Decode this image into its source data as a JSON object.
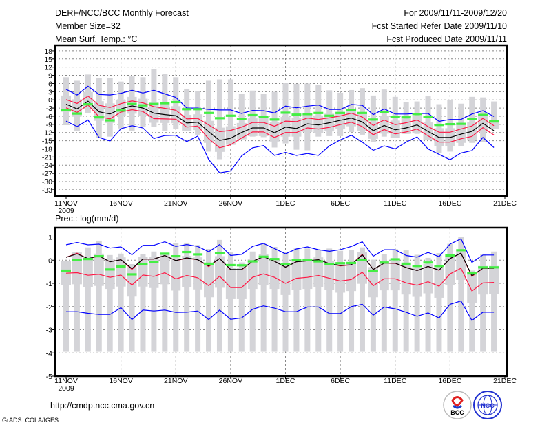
{
  "header": {
    "title": "DERF/NCC/BCC Monthly Forecast",
    "member_size": "Member Size=32",
    "variable": "Mean Surf. Temp.: °C",
    "period": "For 2009/11/11-2009/12/20",
    "start_date": "Fcst Started Refer Date 2009/11/10",
    "produced_date": "Fcst Produced Date 2009/11/11"
  },
  "footer": {
    "url": "http://cmdp.ncc.cma.gov.cn",
    "credit": "GrADS: COLA/IGES",
    "logo_bcc": "BCC",
    "logo_ncc": "NCC"
  },
  "colors": {
    "max_min": "#0000ff",
    "spread": "#ff1744",
    "mean": "#000000",
    "observed": "#44ee44",
    "range_bar": "#d4d4d8",
    "grid": "#888888"
  },
  "chart_data": [
    {
      "type": "line",
      "title": "Mean Surf. Temp.: °C",
      "x_tick_labels": [
        "11NOV",
        "16NOV",
        "21NOV",
        "26NOV",
        "1DEC",
        "6DEC",
        "11DEC",
        "16DEC",
        "21DEC"
      ],
      "x_year_label": "2009",
      "y_tick_labels": [
        "18",
        "15",
        "12",
        "9",
        "6",
        "3",
        "0",
        "-3",
        "-6",
        "-9",
        "-12",
        "-15",
        "-18",
        "-21",
        "-24",
        "-27",
        "-30",
        "-33"
      ],
      "ylim": [
        -35.3,
        20
      ],
      "grid": true,
      "days": 40,
      "series": [
        {
          "name": "ensemble_max",
          "color": "#0000ff",
          "values": [
            3.9,
            1.8,
            5,
            2,
            1.8,
            2.4,
            3.5,
            2.5,
            3.5,
            2.2,
            0.9,
            -3,
            -3,
            -3.5,
            -3.7,
            -3.7,
            -5,
            -3.9,
            -4,
            -4.8,
            -2.3,
            -2.9,
            -2.3,
            -1.9,
            -3.5,
            -3.5,
            -1.7,
            -2,
            -5.4,
            -3.3,
            -5.2,
            -5.2,
            -5,
            -5,
            -7.9,
            -7.2,
            -7.2,
            -5.2,
            -4,
            -6.1
          ]
        },
        {
          "name": "spread_upper",
          "color": "#ff1744",
          "values": [
            0.1,
            -1.3,
            1.4,
            -2,
            -2.8,
            -1.4,
            -0.4,
            -1.1,
            -2.5,
            -3.1,
            -3.8,
            -7,
            -6.8,
            -9.2,
            -11.7,
            -11.2,
            -10,
            -8.3,
            -8.3,
            -9.7,
            -7.8,
            -8,
            -6.7,
            -7.2,
            -6.6,
            -5.9,
            -4.9,
            -6.3,
            -9.4,
            -7.4,
            -9.1,
            -8.4,
            -7.4,
            -9.8,
            -11.9,
            -11.9,
            -10.7,
            -9.6,
            -6.8,
            -9.5
          ]
        },
        {
          "name": "ensemble_mean",
          "color": "#000000",
          "values": [
            -1.6,
            -3.3,
            -0.5,
            -4.4,
            -5.2,
            -3.3,
            -2.2,
            -3,
            -4.9,
            -5.4,
            -5.8,
            -8.5,
            -8.2,
            -11.7,
            -14.9,
            -14.1,
            -12,
            -10.3,
            -10.3,
            -12.1,
            -10,
            -10.5,
            -8.8,
            -9.2,
            -8.4,
            -7.5,
            -6.7,
            -8.1,
            -11.3,
            -9.4,
            -11,
            -10.3,
            -9.2,
            -11.6,
            -13.8,
            -13.8,
            -12.6,
            -11.6,
            -8.6,
            -11.3
          ]
        },
        {
          "name": "spread_lower",
          "color": "#ff1744",
          "values": [
            -2.9,
            -4.6,
            -1.9,
            -6.2,
            -7,
            -4.5,
            -3.6,
            -4.3,
            -6.9,
            -7,
            -7.1,
            -10,
            -9.6,
            -14.3,
            -17.6,
            -16.5,
            -14,
            -11.8,
            -11.8,
            -13.8,
            -12,
            -12,
            -10.3,
            -10.7,
            -10.1,
            -9.1,
            -8.2,
            -9.8,
            -12.8,
            -10.9,
            -12.5,
            -11.8,
            -10.7,
            -13.2,
            -15.5,
            -15.5,
            -14.3,
            -13.4,
            -10.2,
            -12.9
          ]
        },
        {
          "name": "ensemble_min",
          "color": "#0000ff",
          "values": [
            -7.8,
            -9.8,
            -7.4,
            -13.8,
            -15.1,
            -10.6,
            -9.5,
            -10.3,
            -14.2,
            -13.1,
            -13,
            -15.3,
            -13.3,
            -21.9,
            -26.8,
            -26.1,
            -20.6,
            -17.6,
            -16.8,
            -20.4,
            -19.3,
            -20.4,
            -19.7,
            -20.4,
            -16.9,
            -14.7,
            -13,
            -15.5,
            -18.5,
            -16.9,
            -18,
            -15.5,
            -13.6,
            -18,
            -20,
            -22,
            -19.5,
            -18.6,
            -13.8,
            -17.5
          ]
        }
      ],
      "observed": [
        -3.7,
        -5,
        -1.6,
        -6.4,
        -7.5,
        -3.9,
        -1.5,
        -2,
        -1.5,
        -1.2,
        -0.8,
        -3.4,
        -3.4,
        -4.8,
        -6.7,
        -5.8,
        -6.9,
        -5.6,
        -6.2,
        -7.2,
        -4.7,
        -5.4,
        -5.2,
        -4.8,
        -5.8,
        -4.8,
        -3.7,
        -4.8,
        -7.2,
        -4.5,
        -6.2,
        -6.4,
        -5.2,
        -6.2,
        -9.2,
        -8.9,
        -8.8,
        -6.9,
        -5.5,
        -7.9
      ],
      "range_top": [
        8.3,
        7,
        9.3,
        8,
        8,
        6.7,
        8.6,
        8.3,
        11.3,
        9.5,
        8.3,
        4.1,
        3.2,
        7,
        7.5,
        7.5,
        2.1,
        3.4,
        2.1,
        2.9,
        6.1,
        5.9,
        6,
        5.6,
        3.5,
        2.6,
        3.6,
        4.3,
        1.6,
        3.8,
        1.1,
        -0.9,
        -0.6,
        1.3,
        -1.6,
        -0.2,
        -1.4,
        1.1,
        0.9,
        -0.6
      ],
      "range_bottom": [
        -9.3,
        -11.5,
        -5,
        -14,
        -13.5,
        -10.5,
        -11.3,
        -10,
        -10,
        -11.3,
        -10.7,
        -11.5,
        -12.8,
        -19,
        -21.8,
        -16.5,
        -14.5,
        -13.5,
        -13.7,
        -17.5,
        -16,
        -18.3,
        -18.5,
        -13.5,
        -13.3,
        -13.3,
        -11.8,
        -12.8,
        -15.5,
        -13.5,
        -14,
        -12.5,
        -12.5,
        -14.8,
        -19.5,
        -19,
        -17,
        -15.8,
        -15.6,
        -10.8
      ]
    },
    {
      "type": "line",
      "title": "Prec.: log(mm/d)",
      "x_tick_labels": [
        "11NOV",
        "16NOV",
        "21NOV",
        "26NOV",
        "1DEC",
        "6DEC",
        "11DEC",
        "16DEC",
        "21DEC"
      ],
      "x_year_label": "2009",
      "y_tick_labels": [
        "1",
        "0",
        "-1",
        "-2",
        "-3",
        "-4",
        "-5"
      ],
      "ylim": [
        -5,
        1.4
      ],
      "grid": true,
      "days": 40,
      "series": [
        {
          "name": "ensemble_max",
          "color": "#0000ff",
          "values": [
            0.66,
            0.76,
            0.66,
            0.69,
            0.52,
            0.57,
            0.23,
            0.64,
            0.64,
            0.79,
            0.59,
            0.67,
            0.59,
            0.36,
            0.67,
            0.2,
            0.25,
            0.59,
            0.72,
            0.5,
            0.27,
            0.48,
            0.57,
            0.45,
            0.38,
            0.45,
            0.59,
            0.79,
            0.17,
            0.45,
            0.45,
            0.2,
            0.13,
            0.33,
            0.15,
            0.69,
            0.92,
            -0.1,
            0.22,
            0.22
          ]
        },
        {
          "name": "spread_upper",
          "color": "#ff1744",
          "values": [
            0.12,
            0.3,
            0.05,
            0.18,
            -0.07,
            0.02,
            -0.4,
            0.05,
            0.05,
            0.2,
            -0.02,
            0.08,
            0.02,
            -0.28,
            0.07,
            -0.42,
            -0.42,
            -0.05,
            0.15,
            -0.05,
            -0.3,
            -0.07,
            -0.03,
            0.02,
            -0.15,
            -0.25,
            -0.2,
            0.25,
            -0.4,
            -0.13,
            -0.14,
            -0.32,
            -0.45,
            -0.27,
            -0.44,
            0.07,
            0.3,
            -0.7,
            -0.35,
            -0.35
          ]
        },
        {
          "name": "ensemble_mean",
          "color": "#000000",
          "values": [
            0.12,
            0.27,
            0.07,
            0.18,
            -0.07,
            0.02,
            -0.37,
            0.05,
            0.05,
            0.2,
            -0.02,
            0.1,
            0.02,
            -0.25,
            0.07,
            -0.4,
            -0.4,
            -0.05,
            0.15,
            -0.05,
            -0.3,
            -0.07,
            -0.03,
            0.02,
            -0.15,
            -0.23,
            -0.2,
            0.23,
            -0.4,
            -0.13,
            -0.13,
            -0.32,
            -0.45,
            -0.27,
            -0.43,
            0.07,
            0.3,
            -0.67,
            -0.35,
            -0.35
          ]
        },
        {
          "name": "spread_lower",
          "color": "#ff1744",
          "values": [
            -0.56,
            -0.54,
            -0.65,
            -0.61,
            -0.74,
            -0.64,
            -1.07,
            -0.64,
            -0.7,
            -0.54,
            -0.81,
            -0.66,
            -0.76,
            -1.1,
            -0.69,
            -1.18,
            -1.18,
            -0.74,
            -0.59,
            -0.74,
            -1,
            -0.78,
            -0.74,
            -0.66,
            -0.78,
            -0.9,
            -0.83,
            -0.52,
            -1.1,
            -0.8,
            -0.8,
            -0.98,
            -1.08,
            -0.93,
            -1.12,
            -0.59,
            -0.35,
            -1.33,
            -0.98,
            -0.96
          ]
        },
        {
          "name": "ensemble_min",
          "color": "#0000ff",
          "values": [
            -2.22,
            -2.22,
            -2.29,
            -2.34,
            -2.34,
            -2.05,
            -2.56,
            -2.15,
            -2.19,
            -2.15,
            -2.25,
            -2.24,
            -2.19,
            -2.56,
            -2.15,
            -2.55,
            -2.49,
            -2.12,
            -1.97,
            -2.07,
            -2.22,
            -2.22,
            -2.02,
            -2.02,
            -2.3,
            -2.3,
            -2,
            -1.9,
            -2.37,
            -2.02,
            -2.1,
            -2.24,
            -2.42,
            -2.27,
            -2.49,
            -1.9,
            -1.76,
            -2.6,
            -2.24,
            -2.24
          ]
        }
      ],
      "observed": [
        -0.45,
        0.02,
        0.05,
        0.17,
        -0.4,
        -0.27,
        -0.61,
        -0.18,
        -0.07,
        0.28,
        0.17,
        0.35,
        0.25,
        -0.15,
        0.3,
        -0.21,
        -0.22,
        -0.05,
        0.15,
        0.05,
        -0.18,
        0.02,
        0.02,
        -0.05,
        -0.17,
        -0.13,
        -0.12,
        0.02,
        -0.46,
        -0.1,
        0.04,
        -0.15,
        -0.25,
        -0.1,
        -0.25,
        0.2,
        0.43,
        -0.57,
        -0.31,
        -0.31
      ],
      "range_top": [
        -0.05,
        0.33,
        0.55,
        0.84,
        0.22,
        0.28,
        -0.17,
        0.25,
        0.37,
        0.25,
        0.72,
        0.75,
        0.65,
        0.48,
        0.87,
        0.33,
        -0.1,
        0.37,
        0.7,
        0.57,
        0.33,
        0.5,
        0.5,
        0.43,
        0.5,
        0.4,
        0.43,
        0.55,
        0.02,
        0.27,
        0.47,
        0.42,
        0.23,
        0.1,
        0.3,
        0.7,
        0.99,
        -0.45,
        0.24,
        0.37
      ],
      "range_bottom": [
        -3.95,
        -3.95,
        -3.95,
        -3.95,
        -3.95,
        -3.95,
        -3.95,
        -3.95,
        -3.95,
        -3.95,
        -3.95,
        -3.95,
        -3.95,
        -3.95,
        -3.95,
        -3.95,
        -3.95,
        -3.95,
        -3.95,
        -3.95,
        -3.95,
        -3.95,
        -3.95,
        -3.95,
        -3.95,
        -3.95,
        -3.95,
        -3.95,
        -3.95,
        -3.95,
        -3.95,
        -3.95,
        -3.95,
        -3.95,
        -3.95,
        -3.95,
        -3.95,
        -3.95,
        -3.95,
        -3.95
      ]
    }
  ]
}
